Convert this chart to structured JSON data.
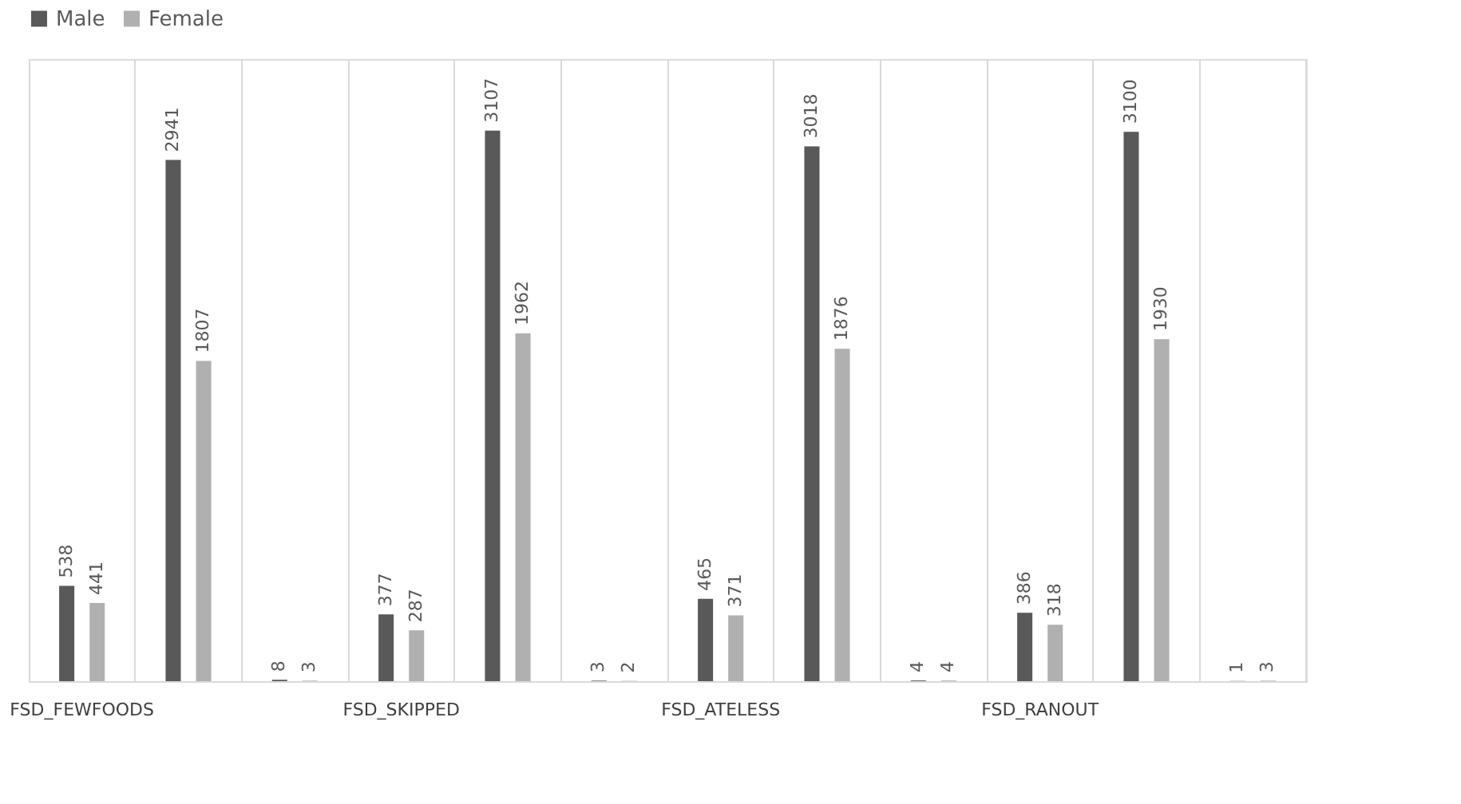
{
  "chart_data": {
    "type": "bar",
    "categories": [
      "FSD_FEWFOODS",
      null,
      null,
      "FSD_SKIPPED",
      null,
      null,
      "FSD_ATELESS",
      null,
      null,
      "FSD_RANOUT",
      null,
      null
    ],
    "series": [
      {
        "name": "Male",
        "color": "#595959",
        "values": [
          538,
          2941,
          8,
          377,
          3107,
          3,
          465,
          3018,
          4,
          386,
          3100,
          1
        ]
      },
      {
        "name": "Female",
        "color": "#b0b0b0",
        "values": [
          441,
          1807,
          3,
          287,
          1962,
          2,
          371,
          1876,
          4,
          318,
          1930,
          3
        ]
      }
    ],
    "data_labels": true,
    "grid": "x",
    "legend": "top"
  }
}
